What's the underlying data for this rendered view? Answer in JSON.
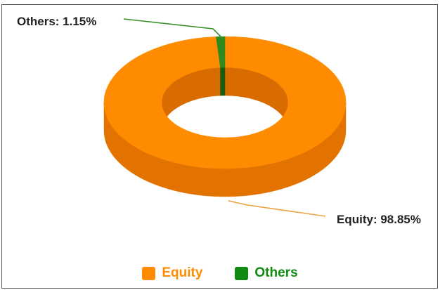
{
  "chart_data": {
    "type": "pie",
    "style": "3d-donut",
    "slices": [
      {
        "name": "Equity",
        "value": 98.85,
        "label": "Equity: 98.85%",
        "color": "#ff8c00",
        "side_color": "#e37300",
        "dark_color": "#d86c00"
      },
      {
        "name": "Others",
        "value": 1.15,
        "label": "Others: 1.15%",
        "color": "#2e8b1e",
        "side_color": "#1f6e12",
        "dark_color": "#1a5c0f"
      }
    ],
    "legend": {
      "placement": "bottom",
      "items": [
        {
          "label": "Equity",
          "color": "#ff8c00",
          "text_color": "#ff8c00"
        },
        {
          "label": "Others",
          "color": "#108a10",
          "text_color": "#108a10"
        }
      ]
    }
  }
}
